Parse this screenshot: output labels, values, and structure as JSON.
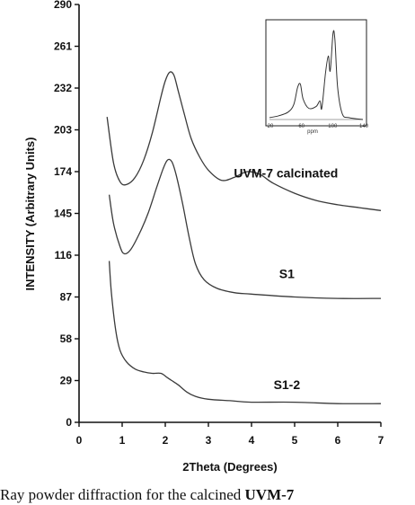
{
  "chart_data": {
    "type": "line",
    "title": "",
    "xlabel": "2Theta (Degrees)",
    "ylabel": "INTENSITY (Arbitrary Units)",
    "xlim": [
      0,
      7
    ],
    "ylim": [
      0,
      290
    ],
    "x_ticks": [
      "0",
      "1",
      "2",
      "3",
      "4",
      "5",
      "6",
      "7"
    ],
    "y_ticks": [
      "0",
      "29",
      "58",
      "87",
      "116",
      "145",
      "174",
      "203",
      "232",
      "261",
      "290"
    ],
    "grid": false,
    "series": [
      {
        "name": "UVM-7 calcinated",
        "x": [
          0.65,
          0.8,
          0.95,
          1.1,
          1.3,
          1.5,
          1.7,
          1.9,
          2.0,
          2.1,
          2.2,
          2.3,
          2.45,
          2.6,
          2.8,
          3.0,
          3.3,
          3.6,
          3.9,
          4.2,
          4.5,
          5.0,
          5.5,
          6.0,
          6.5,
          7.0
        ],
        "y": [
          212,
          180,
          167,
          165,
          170,
          182,
          201,
          226,
          237,
          243,
          241,
          230,
          213,
          197,
          184,
          175,
          168,
          170,
          174,
          172,
          166,
          159,
          154,
          151,
          149,
          147
        ]
      },
      {
        "name": "S1",
        "x": [
          0.7,
          0.8,
          0.95,
          1.05,
          1.2,
          1.4,
          1.6,
          1.8,
          1.95,
          2.05,
          2.15,
          2.25,
          2.4,
          2.55,
          2.7,
          2.9,
          3.2,
          3.6,
          4.0,
          5.0,
          6.0,
          7.0
        ],
        "y": [
          158,
          138,
          122,
          117,
          120,
          131,
          145,
          163,
          176,
          182,
          181,
          172,
          152,
          129,
          110,
          99,
          93,
          90,
          89,
          87,
          86,
          86
        ]
      },
      {
        "name": "S1-2",
        "x": [
          0.7,
          0.75,
          0.85,
          0.95,
          1.1,
          1.3,
          1.5,
          1.7,
          1.9,
          2.05,
          2.15,
          2.3,
          2.5,
          2.7,
          3.0,
          3.5,
          4.0,
          5.0,
          6.0,
          7.0
        ],
        "y": [
          112,
          90,
          64,
          50,
          42,
          37,
          35,
          34,
          34,
          31,
          29,
          26,
          21,
          18,
          16,
          15,
          14,
          14,
          13,
          13
        ]
      }
    ],
    "inset": {
      "x_ticks": [
        "-20",
        "-60",
        "-100",
        "-140"
      ],
      "xlabel": "ppm"
    }
  },
  "caption": {
    "prefix": "Ray powder diffraction for the calcined ",
    "bold": "UVM-7"
  }
}
